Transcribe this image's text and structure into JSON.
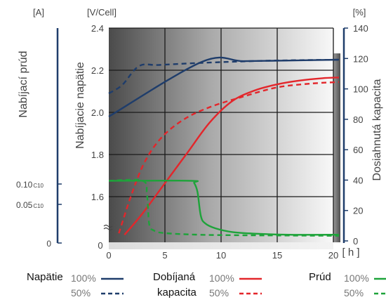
{
  "chart_data": {
    "type": "line",
    "x_axis": {
      "label": "[ h ]",
      "range": [
        0,
        20
      ],
      "ticks": [
        "0",
        "5",
        "10",
        "15",
        "20"
      ]
    },
    "voltage_axis": {
      "unit": "[V/Cell]",
      "title": "Nabíjacie napätie",
      "range": [
        1.4,
        2.4
      ],
      "ticks": [
        "1.6",
        "1.8",
        "2.0",
        "2.2",
        "2.4"
      ],
      "zero_label": "0"
    },
    "current_axis": {
      "unit": "[A]",
      "title": "Nabíjací prúd",
      "ticks": [
        {
          "value": 0.1,
          "main": "0.10",
          "sub": "C10"
        },
        {
          "value": 0.05,
          "main": "0.05",
          "sub": "C10"
        },
        {
          "value": 0.0,
          "main": "0",
          "sub": ""
        }
      ]
    },
    "capacity_axis": {
      "unit": "[%]",
      "title": "Dosiahnutá kapacita",
      "range": [
        0,
        140
      ],
      "ticks": [
        "0",
        "20",
        "40",
        "60",
        "80",
        "100",
        "120",
        "140"
      ]
    },
    "series": [
      {
        "name": "Napätie 100%",
        "axis": "voltage",
        "color": "#1f3d6b",
        "dash": "solid",
        "points": [
          [
            0,
            1.98
          ],
          [
            8.3,
            2.24
          ],
          [
            12,
            2.243
          ],
          [
            16,
            2.246
          ],
          [
            20.5,
            2.25
          ]
        ]
      },
      {
        "name": "Napätie 50%",
        "axis": "voltage",
        "color": "#1f3d6b",
        "dash": "dashed",
        "points": [
          [
            0,
            2.09
          ],
          [
            1.2,
            2.13
          ],
          [
            2.7,
            2.22
          ],
          [
            4.5,
            2.225
          ],
          [
            8.3,
            2.235
          ],
          [
            14,
            2.245
          ],
          [
            20.5,
            2.25
          ]
        ]
      },
      {
        "name": "Dobíjaná kapacita 100%",
        "axis": "capacity",
        "color": "#e3262b",
        "dash": "solid",
        "points": [
          [
            1.4,
            4
          ],
          [
            3,
            18
          ],
          [
            5,
            38
          ],
          [
            7,
            58
          ],
          [
            9,
            78
          ],
          [
            11,
            92
          ],
          [
            13,
            99
          ],
          [
            15,
            103
          ],
          [
            17,
            105.5
          ],
          [
            19,
            107
          ],
          [
            20.5,
            107.5
          ]
        ]
      },
      {
        "name": "Dobíjaná kapacita 50%",
        "axis": "capacity",
        "color": "#e3262b",
        "dash": "dashed",
        "points": [
          [
            0.9,
            5
          ],
          [
            2,
            30
          ],
          [
            3.2,
            52
          ],
          [
            4.7,
            68
          ],
          [
            6.7,
            80
          ],
          [
            9,
            88
          ],
          [
            12,
            95
          ],
          [
            15,
            101
          ],
          [
            18,
            103.5
          ],
          [
            20.5,
            104.5
          ]
        ]
      },
      {
        "name": "Prúd 100%",
        "axis": "current",
        "color": "#1ea33a",
        "dash": "solid",
        "points": [
          [
            0,
            0.106
          ],
          [
            7.3,
            0.106
          ],
          [
            7.6,
            0.102
          ],
          [
            7.9,
            0.085
          ],
          [
            8.2,
            0.04
          ],
          [
            8.6,
            0.026
          ],
          [
            9.5,
            0.017
          ],
          [
            11,
            0.01
          ],
          [
            13,
            0.007
          ],
          [
            16,
            0.005
          ],
          [
            20.5,
            0.005
          ]
        ]
      },
      {
        "name": "Prúd 50%",
        "axis": "current",
        "color": "#1ea33a",
        "dash": "dashed",
        "points": [
          [
            0,
            0.106
          ],
          [
            3.0,
            0.106
          ],
          [
            3.4,
            0.08
          ],
          [
            3.6,
            0.025
          ],
          [
            4.0,
            0.013
          ],
          [
            5.0,
            0.008
          ],
          [
            8,
            0.005
          ],
          [
            12,
            0.004
          ],
          [
            20.5,
            0.003
          ]
        ]
      }
    ]
  },
  "legend": {
    "voltage": {
      "title": "Napätie",
      "full": "100%",
      "half": "50%"
    },
    "capacity": {
      "title_line1": "Dobíjaná",
      "title_line2": "kapacita",
      "full": "100%",
      "half": "50%"
    },
    "current": {
      "title": "Prúd",
      "full": "100%",
      "half": "50%"
    }
  }
}
